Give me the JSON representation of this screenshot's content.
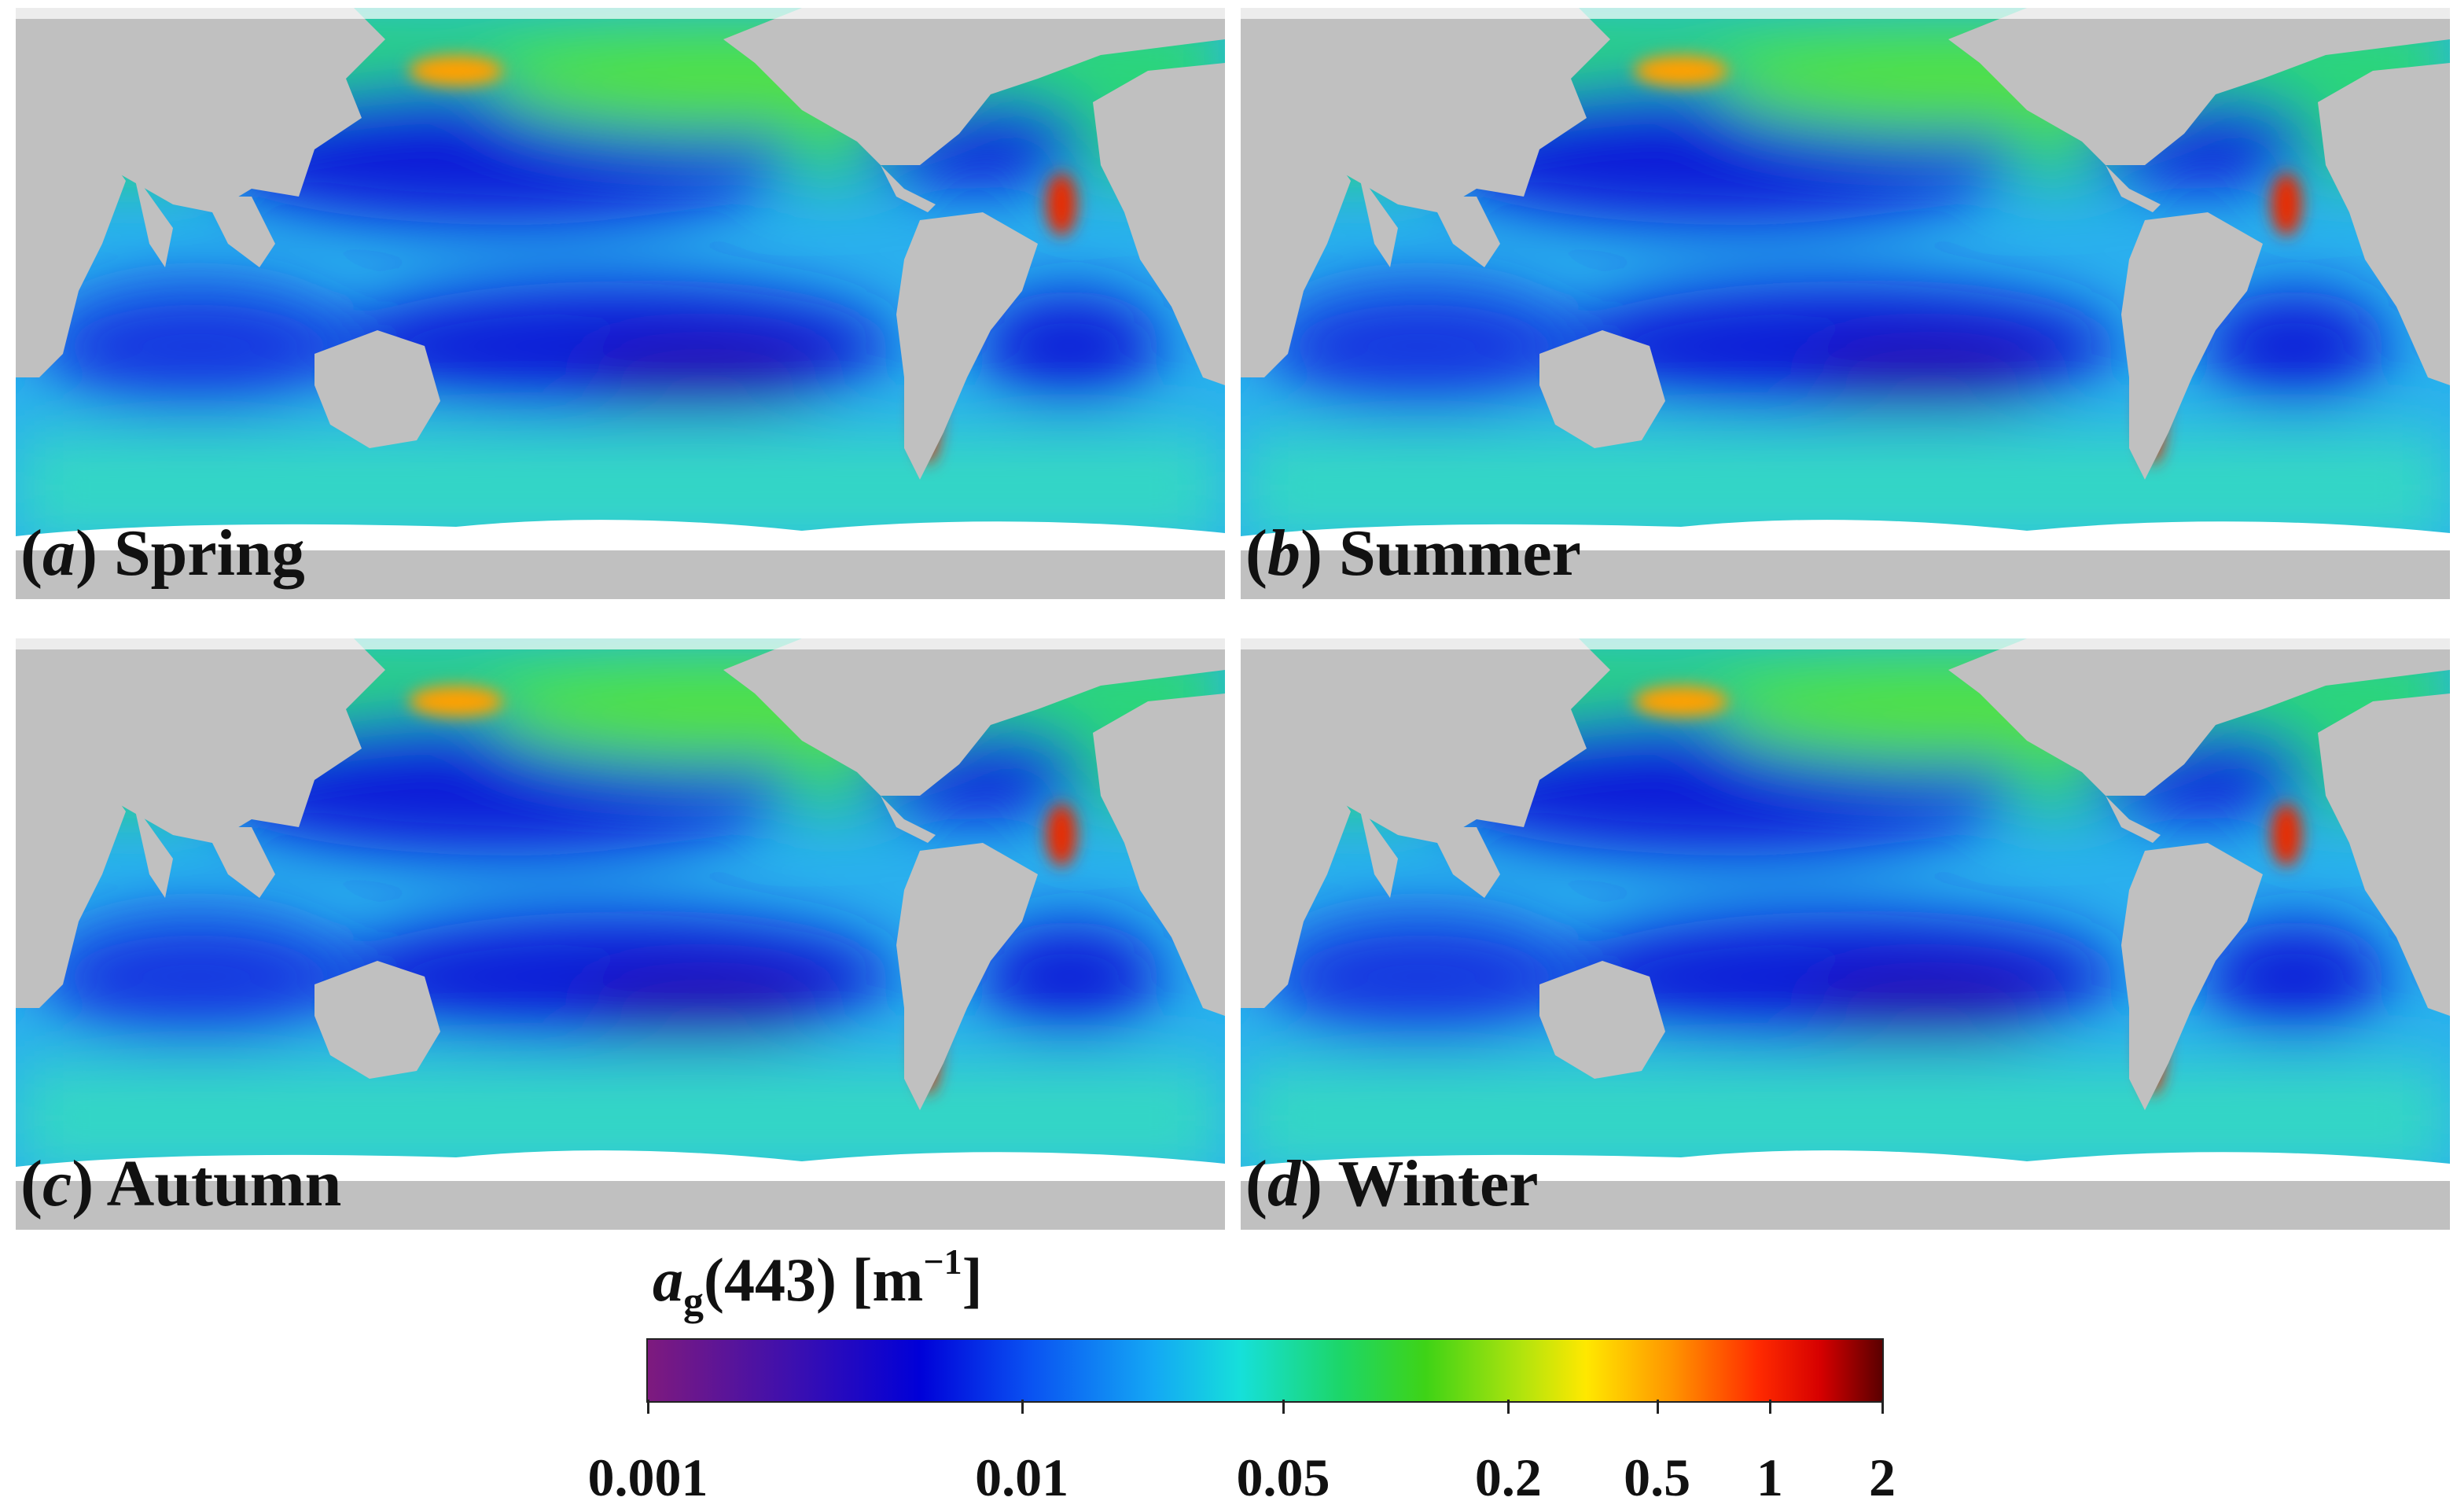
{
  "panels": [
    {
      "id": "a",
      "letter": "a",
      "season": "Spring"
    },
    {
      "id": "b",
      "letter": "b",
      "season": "Summer"
    },
    {
      "id": "c",
      "letter": "c",
      "season": "Autumn"
    },
    {
      "id": "d",
      "letter": "d",
      "season": "Winter"
    }
  ],
  "legend": {
    "symbol": "a",
    "subscript": "g",
    "wavelength": "(443)",
    "unit_open": "[m",
    "unit_exponent": "−1",
    "unit_close": "]",
    "scale": "log",
    "range": [
      0.001,
      2
    ],
    "ticks": [
      "0.001",
      "0.01",
      "0.05",
      "0.2",
      "0.5",
      "1",
      "2"
    ],
    "colormap": [
      "#7e1a7e",
      "#0000d8",
      "#14a8f4",
      "#16e0da",
      "#3ed316",
      "#ffe800",
      "#ff2a00",
      "#5a0000"
    ]
  },
  "colors": {
    "land": "#c0c0c0",
    "no_data": "#ffffff",
    "oligotrophic_gyre": "#0a1fd8",
    "open_ocean": "#18a0ee",
    "high_latitude": "#30d67a",
    "coastal_high": "#e82a00"
  }
}
